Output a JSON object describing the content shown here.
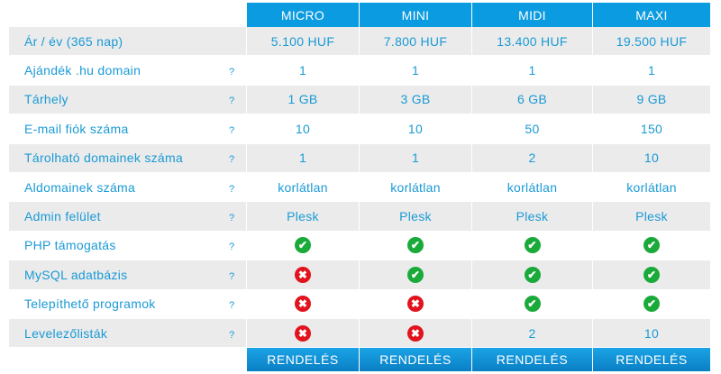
{
  "plans": [
    "MICRO",
    "MINI",
    "MIDI",
    "MAXI"
  ],
  "rows": [
    {
      "label": "Ár / év (365 nap)",
      "help": "",
      "values": [
        "5.100 HUF",
        "7.800 HUF",
        "13.400 HUF",
        "19.500 HUF"
      ]
    },
    {
      "label": "Ajándék .hu domain",
      "help": "?",
      "values": [
        "1",
        "1",
        "1",
        "1"
      ]
    },
    {
      "label": "Tárhely",
      "help": "?",
      "values": [
        "1 GB",
        "3 GB",
        "6 GB",
        "9 GB"
      ]
    },
    {
      "label": "E-mail fiók száma",
      "help": "?",
      "values": [
        "10",
        "10",
        "50",
        "150"
      ]
    },
    {
      "label": "Tárolható domainek száma",
      "help": "?",
      "values": [
        "1",
        "1",
        "2",
        "10"
      ]
    },
    {
      "label": "Aldomainek száma",
      "help": "?",
      "values": [
        "korlátlan",
        "korlátlan",
        "korlátlan",
        "korlátlan"
      ]
    },
    {
      "label": "Admin felület",
      "help": "?",
      "values": [
        "Plesk",
        "Plesk",
        "Plesk",
        "Plesk"
      ]
    },
    {
      "label": "PHP támogatás",
      "help": "?",
      "values": [
        "check",
        "check",
        "check",
        "check"
      ]
    },
    {
      "label": "MySQL adatbázis",
      "help": "?",
      "values": [
        "cross",
        "check",
        "check",
        "check"
      ]
    },
    {
      "label": "Telepíthető programok",
      "help": "?",
      "values": [
        "cross",
        "cross",
        "check",
        "check"
      ]
    },
    {
      "label": "Levelezőlisták",
      "help": "?",
      "values": [
        "cross",
        "cross",
        "2",
        "10"
      ]
    }
  ],
  "order_label": "RENDELÉS",
  "colors": {
    "accent": "#0b9be0",
    "text": "#1a9ad6",
    "check": "#1aaa3a",
    "cross": "#e1141e"
  }
}
